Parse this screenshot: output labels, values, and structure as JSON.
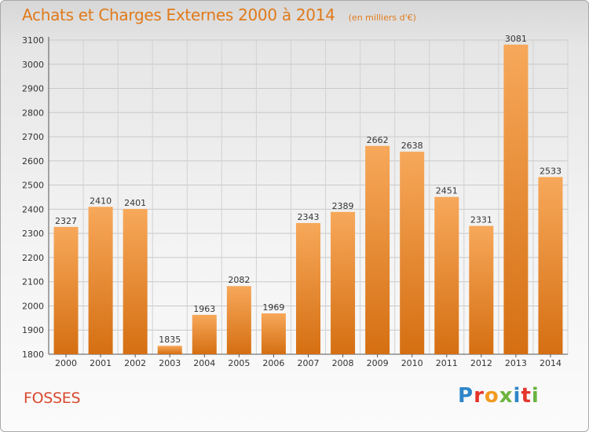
{
  "header": {
    "title": "Achats et Charges Externes 2000 à 2014",
    "unit": "(en milliers d'€)"
  },
  "footer": {
    "commune": "FOSSES",
    "logo_letters": [
      "P",
      "r",
      "o",
      "x",
      "i",
      "t",
      "i"
    ],
    "logo_colors": [
      "#2e86c9",
      "#e5352b",
      "#f29a1f",
      "#6cb43f",
      "#2e86c9",
      "#e5352b",
      "#6cb43f"
    ]
  },
  "colors": {
    "bar_light": "#f7a85a",
    "bar_dark": "#d56f12",
    "title": "#e07a1a",
    "commune": "#d9482d"
  },
  "chart_data": {
    "type": "bar",
    "categories": [
      "2000",
      "2001",
      "2002",
      "2003",
      "2004",
      "2005",
      "2006",
      "2007",
      "2008",
      "2009",
      "2010",
      "2011",
      "2012",
      "2013",
      "2014"
    ],
    "values": [
      2327,
      2410,
      2401,
      1835,
      1963,
      2082,
      1969,
      2343,
      2389,
      2662,
      2638,
      2451,
      2331,
      3081,
      2533
    ],
    "ylim": [
      1800,
      3100
    ],
    "yticks": [
      1800,
      1900,
      2000,
      2100,
      2200,
      2300,
      2400,
      2500,
      2600,
      2700,
      2800,
      2900,
      3000,
      3100
    ],
    "grid": true
  }
}
